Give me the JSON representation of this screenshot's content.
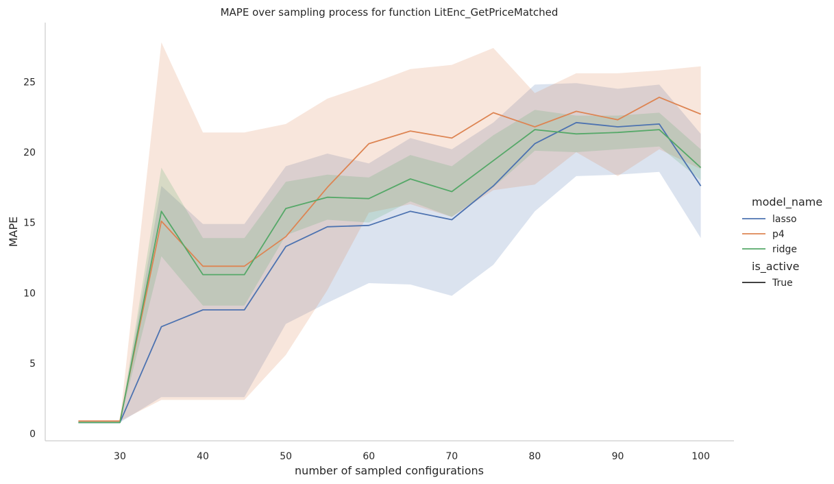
{
  "chart_data": {
    "type": "line",
    "title": "MAPE over sampling process for function LitEnc_GetPriceMatched",
    "xlabel": "number of sampled configurations",
    "ylabel": "MAPE",
    "x": [
      25,
      30,
      35,
      40,
      45,
      50,
      55,
      60,
      65,
      70,
      75,
      80,
      85,
      90,
      95,
      100
    ],
    "xlim": [
      21,
      104
    ],
    "ylim": [
      -0.5,
      29.2
    ],
    "xticks": [
      "30",
      "40",
      "50",
      "60",
      "70",
      "80",
      "90",
      "100"
    ],
    "yticks": [
      "0",
      "5",
      "10",
      "15",
      "20",
      "25"
    ],
    "grid": false,
    "legend_position": "right",
    "legend": {
      "hue_title": "model_name",
      "style_title": "is_active",
      "style_entries": [
        "True"
      ]
    },
    "series": [
      {
        "name": "lasso",
        "color": "#4c72b0",
        "values": [
          0.8,
          0.8,
          7.6,
          8.8,
          8.8,
          13.3,
          14.7,
          14.8,
          15.8,
          15.2,
          17.6,
          20.6,
          22.1,
          21.8,
          22.0,
          17.6
        ],
        "ci_low": [
          0.8,
          0.8,
          2.6,
          2.6,
          2.6,
          7.8,
          9.3,
          10.7,
          10.6,
          9.8,
          12.0,
          15.8,
          18.3,
          18.4,
          18.6,
          13.9
        ],
        "ci_high": [
          0.8,
          0.8,
          17.6,
          14.9,
          14.9,
          19.0,
          19.9,
          19.2,
          21.0,
          20.2,
          22.1,
          24.8,
          24.9,
          24.5,
          24.8,
          21.3
        ]
      },
      {
        "name": "p4",
        "color": "#dd8452",
        "values": [
          0.9,
          0.9,
          15.1,
          11.9,
          11.9,
          14.0,
          17.5,
          20.6,
          21.5,
          21.0,
          22.8,
          21.8,
          22.9,
          22.3,
          23.9,
          22.7
        ],
        "ci_low": [
          0.9,
          0.9,
          2.4,
          2.4,
          2.4,
          5.6,
          10.2,
          15.7,
          16.3,
          15.4,
          17.3,
          17.7,
          20.0,
          18.3,
          20.2,
          18.8
        ],
        "ci_high": [
          0.9,
          0.9,
          27.8,
          21.4,
          21.4,
          22.0,
          23.8,
          24.8,
          25.9,
          26.2,
          27.4,
          24.2,
          25.6,
          25.6,
          25.8,
          26.1
        ]
      },
      {
        "name": "ridge",
        "color": "#55a868",
        "values": [
          0.8,
          0.8,
          15.8,
          11.3,
          11.3,
          16.0,
          16.8,
          16.7,
          18.1,
          17.2,
          19.4,
          21.6,
          21.3,
          21.4,
          21.6,
          18.9
        ],
        "ci_low": [
          0.8,
          0.8,
          12.6,
          9.1,
          9.1,
          14.1,
          15.2,
          15.0,
          16.5,
          15.4,
          17.5,
          20.1,
          20.0,
          20.2,
          20.4,
          18.0
        ],
        "ci_high": [
          0.8,
          0.8,
          18.9,
          13.9,
          13.9,
          17.9,
          18.4,
          18.2,
          19.8,
          19.0,
          21.2,
          23.0,
          22.6,
          22.6,
          22.8,
          20.2
        ]
      }
    ]
  }
}
